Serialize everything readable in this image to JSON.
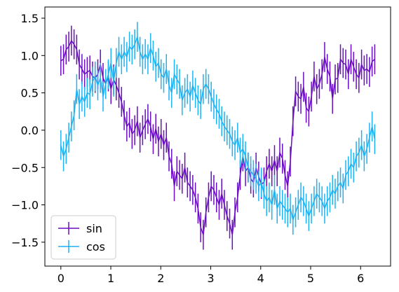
{
  "chart_data": {
    "type": "line",
    "title": "",
    "xlabel": "",
    "ylabel": "",
    "xlim": [
      -0.32,
      6.6
    ],
    "ylim": [
      -1.82,
      1.65
    ],
    "x_ticks": [
      "0",
      "1",
      "2",
      "3",
      "4",
      "5",
      "6"
    ],
    "y_ticks": [
      "1.5",
      "1.0",
      "0.5",
      "0.0",
      "−0.5",
      "−1.0",
      "−1.5"
    ],
    "grid": false,
    "legend_position": "lower-left",
    "error_bars": true,
    "x_start": 0,
    "x_end": 6.283,
    "series": [
      {
        "name": "sin",
        "color": "#6a0dc2",
        "error": 0.2,
        "values": [
          0.93,
          0.95,
          1.08,
          1.12,
          1.2,
          1.15,
          1.08,
          0.88,
          0.82,
          0.75,
          0.78,
          0.8,
          0.72,
          0.7,
          0.75,
          0.88,
          0.7,
          0.62,
          0.72,
          0.55,
          0.68,
          0.6,
          0.5,
          0.38,
          0.2,
          0.05,
          0.1,
          -0.05,
          0.0,
          0.12,
          -0.1,
          0.0,
          0.08,
          0.15,
          0.05,
          -0.12,
          0.02,
          -0.15,
          -0.05,
          -0.2,
          -0.1,
          -0.35,
          -0.45,
          -0.75,
          -0.55,
          -0.6,
          -0.65,
          -0.5,
          -0.7,
          -0.75,
          -0.8,
          -0.9,
          -1.05,
          -1.3,
          -1.4,
          -1.1,
          -0.9,
          -0.75,
          -0.8,
          -0.9,
          -1.0,
          -0.85,
          -1.0,
          -1.15,
          -1.25,
          -1.4,
          -1.1,
          -0.9,
          -0.6,
          -0.35,
          -0.55,
          -0.5,
          -0.65,
          -0.7,
          -0.5,
          -0.62,
          -0.72,
          -0.7,
          -0.55,
          -0.45,
          -0.55,
          -0.4,
          -0.55,
          -0.3,
          -0.38,
          -0.6,
          -0.75,
          -0.42,
          0.12,
          0.52,
          0.45,
          0.42,
          0.58,
          0.3,
          0.25,
          0.45,
          0.72,
          0.55,
          0.62,
          0.75,
          0.98,
          0.82,
          0.72,
          0.42,
          0.68,
          0.7,
          0.95,
          0.9,
          0.88,
          0.75,
          0.95,
          0.85,
          0.75,
          0.7,
          0.88,
          0.8,
          0.82,
          0.78,
          0.92,
          0.95
        ]
      },
      {
        "name": "cos",
        "color": "#1fb2f2",
        "error": 0.2,
        "values": [
          -0.2,
          -0.35,
          -0.25,
          -0.1,
          0.05,
          0.2,
          0.55,
          0.35,
          0.45,
          0.38,
          0.5,
          0.48,
          0.65,
          0.72,
          0.6,
          0.7,
          0.45,
          0.62,
          0.75,
          0.9,
          0.65,
          0.9,
          1.05,
          0.95,
          1.05,
          0.98,
          1.12,
          1.08,
          1.15,
          1.25,
          1.05,
          0.95,
          1.02,
          0.95,
          1.1,
          1.0,
          0.85,
          0.9,
          0.75,
          0.7,
          0.82,
          0.6,
          0.5,
          0.75,
          0.68,
          0.62,
          0.4,
          0.5,
          0.55,
          0.45,
          0.6,
          0.5,
          0.4,
          0.35,
          0.55,
          0.62,
          0.55,
          0.45,
          0.35,
          0.28,
          0.22,
          0.12,
          0.05,
          0.0,
          -0.05,
          -0.15,
          -0.2,
          -0.1,
          -0.3,
          -0.25,
          -0.35,
          -0.5,
          -0.55,
          -0.6,
          -0.65,
          -0.75,
          -0.7,
          -0.85,
          -0.95,
          -0.9,
          -1.0,
          -0.8,
          -1.05,
          -0.95,
          -1.0,
          -1.05,
          -1.1,
          -1.05,
          -1.2,
          -1.1,
          -1.0,
          -0.9,
          -0.95,
          -1.05,
          -1.15,
          -1.05,
          -0.95,
          -0.85,
          -0.9,
          -0.95,
          -1.05,
          -0.95,
          -0.9,
          -0.8,
          -0.85,
          -0.75,
          -0.7,
          -0.78,
          -0.6,
          -0.55,
          -0.45,
          -0.5,
          -0.35,
          -0.3,
          -0.2,
          -0.35,
          -0.25,
          -0.1,
          0.05,
          -0.12
        ]
      }
    ]
  }
}
